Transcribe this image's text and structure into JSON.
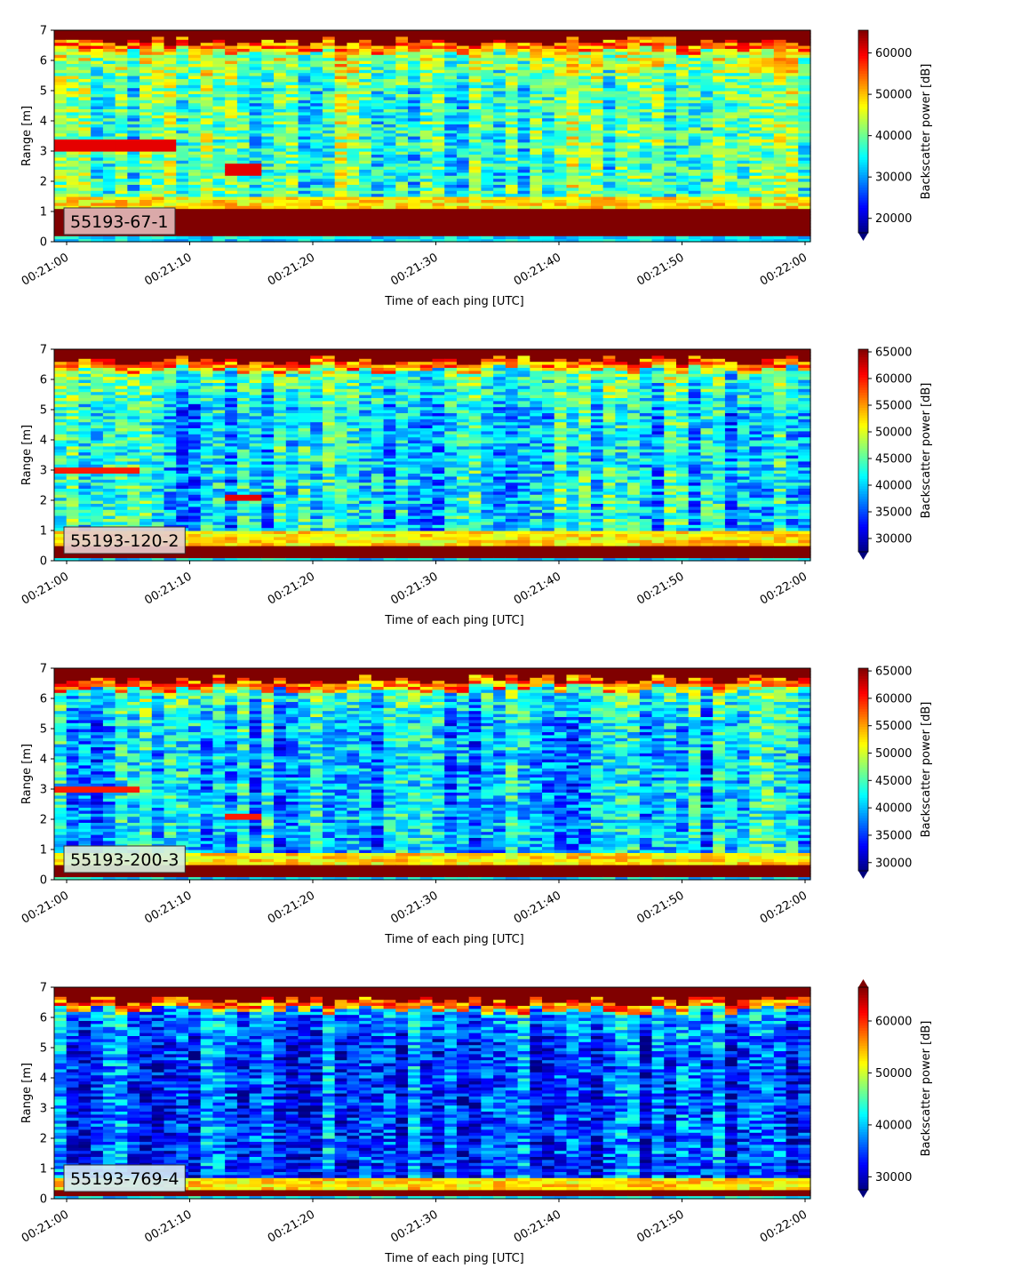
{
  "colormap": "jet",
  "colors": {
    "jet_under": "#00007f",
    "jet_over": "#7f0000",
    "label_box_edge": "#333333"
  },
  "chart_data": [
    {
      "type": "heatmap",
      "panel_label": "55193-67-1",
      "label_box_color": "#e2b7b7",
      "xlabel": "Time of each ping [UTC]",
      "ylabel": "Range [m]",
      "x_range": [
        "00:21:00",
        "00:22:00"
      ],
      "xticks": [
        "00:21:00",
        "00:21:10",
        "00:21:20",
        "00:21:30",
        "00:21:40",
        "00:21:50",
        "00:22:00"
      ],
      "ylim": [
        0,
        7
      ],
      "yticks": [
        "0",
        "1",
        "2",
        "3",
        "4",
        "5",
        "6",
        "7"
      ],
      "colorbar": {
        "label": "Backscatter power [dB]",
        "range": [
          16500,
          65500
        ],
        "ticks": [
          "20000",
          "30000",
          "40000",
          "50000",
          "60000"
        ],
        "extend": "min"
      },
      "features": {
        "bottom_band_m": [
          0.2,
          1.15
        ],
        "surface_band_m": 6.85,
        "mid_level": 0.45,
        "echo_layer": {
          "range_m": [
            2.95,
            3.45
          ],
          "until_time": "00:21:09",
          "level": 0.9
        },
        "spot": {
          "time": "00:21:15",
          "range_m": [
            2.2,
            2.6
          ],
          "level": 0.9
        }
      }
    },
    {
      "type": "heatmap",
      "panel_label": "55193-120-2",
      "label_box_color": "#e6cccc",
      "xlabel": "Time of each ping [UTC]",
      "ylabel": "Range [m]",
      "x_range": [
        "00:21:00",
        "00:22:00"
      ],
      "xticks": [
        "00:21:00",
        "00:21:10",
        "00:21:20",
        "00:21:30",
        "00:21:40",
        "00:21:50",
        "00:22:00"
      ],
      "ylim": [
        0,
        7
      ],
      "yticks": [
        "0",
        "1",
        "2",
        "3",
        "4",
        "5",
        "6",
        "7"
      ],
      "colorbar": {
        "label": "Backscatter power [dB]",
        "range": [
          27500,
          65500
        ],
        "ticks": [
          "30000",
          "35000",
          "40000",
          "45000",
          "50000",
          "55000",
          "60000",
          "65000"
        ],
        "extend": "min"
      },
      "features": {
        "bottom_band_m": [
          0.15,
          0.55
        ],
        "surface_band_m": 6.85,
        "mid_level": 0.35,
        "echo_layer": {
          "range_m": [
            2.85,
            3.1
          ],
          "until_time": "00:21:07",
          "level": 0.85
        },
        "spot": {
          "time": "00:21:15",
          "range_m": [
            2.0,
            2.25
          ],
          "level": 0.9
        }
      }
    },
    {
      "type": "heatmap",
      "panel_label": "55193-200-3",
      "label_box_color": "#d8eedc",
      "xlabel": "Time of each ping [UTC]",
      "ylabel": "Range [m]",
      "x_range": [
        "00:21:00",
        "00:22:00"
      ],
      "xticks": [
        "00:21:00",
        "00:21:10",
        "00:21:20",
        "00:21:30",
        "00:21:40",
        "00:21:50",
        "00:22:00"
      ],
      "ylim": [
        0,
        7
      ],
      "yticks": [
        "0",
        "1",
        "2",
        "3",
        "4",
        "5",
        "6",
        "7"
      ],
      "colorbar": {
        "label": "Backscatter power [dB]",
        "range": [
          28500,
          65500
        ],
        "ticks": [
          "30000",
          "35000",
          "40000",
          "45000",
          "50000",
          "55000",
          "60000",
          "65000"
        ],
        "extend": "min"
      },
      "features": {
        "bottom_band_m": [
          0.15,
          0.45
        ],
        "surface_band_m": 6.85,
        "mid_level": 0.32,
        "echo_layer": {
          "range_m": [
            2.85,
            3.1
          ],
          "until_time": "00:21:07",
          "level": 0.85
        },
        "spot": {
          "time": "00:21:15",
          "range_m": [
            2.0,
            2.25
          ],
          "level": 0.85
        }
      }
    },
    {
      "type": "heatmap",
      "panel_label": "55193-769-4",
      "label_box_color": "#d2e8f5",
      "xlabel": "Time of each ping [UTC]",
      "ylabel": "Range [m]",
      "x_range": [
        "00:21:00",
        "00:22:00"
      ],
      "xticks": [
        "00:21:00",
        "00:21:10",
        "00:21:20",
        "00:21:30",
        "00:21:40",
        "00:21:50",
        "00:22:00"
      ],
      "ylim": [
        0,
        7
      ],
      "yticks": [
        "0",
        "1",
        "2",
        "3",
        "4",
        "5",
        "6",
        "7"
      ],
      "colorbar": {
        "label": "Backscatter power [dB]",
        "range": [
          27500,
          66500
        ],
        "ticks": [
          "30000",
          "40000",
          "50000",
          "60000"
        ],
        "extend": "both"
      },
      "features": {
        "bottom_band_m": [
          0.15,
          0.3
        ],
        "surface_band_m": 6.8,
        "mid_level": 0.2,
        "echo_layer": null,
        "spot": null
      }
    }
  ]
}
